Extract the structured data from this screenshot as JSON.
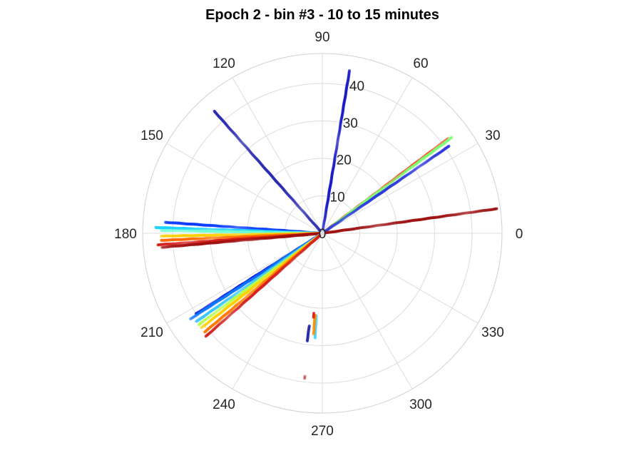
{
  "chart_data": {
    "type": "scatter",
    "subtype": "polar",
    "title": "Epoch 2 - bin #3 - 10 to 15 minutes",
    "theta_unit": "degrees",
    "theta_ticks": [
      0,
      30,
      60,
      90,
      120,
      150,
      180,
      210,
      240,
      270,
      300,
      330
    ],
    "theta_tick_labels": [
      "0",
      "30",
      "60",
      "90",
      "120",
      "150",
      "180",
      "210",
      "240",
      "270",
      "300",
      "330"
    ],
    "r_ticks": [
      0,
      10,
      20,
      30,
      40
    ],
    "r_tick_labels": [
      "0",
      "10",
      "20",
      "30",
      "40"
    ],
    "r_tick_label_angle": 80,
    "rlim": [
      0,
      48
    ],
    "grid": true,
    "legend": "none",
    "colormap": "jet",
    "series": [
      {
        "theta": 80.5,
        "r_range": [
          1,
          44
        ],
        "color": "#1a1ac8"
      },
      {
        "theta": 131.5,
        "r_range": [
          1,
          43.5
        ],
        "color": "#2a2ab0"
      },
      {
        "theta": 37,
        "r_range": [
          1,
          42
        ],
        "color": "#ff4a1e"
      },
      {
        "theta": 36.5,
        "r_range": [
          1,
          43
        ],
        "color": "#7cff7a"
      },
      {
        "theta": 34.5,
        "r_range": [
          1,
          41
        ],
        "color": "#2e3adc"
      },
      {
        "theta": 8,
        "r_range": [
          1,
          47
        ],
        "color": "#9e1212"
      },
      {
        "theta": 176,
        "r_range": [
          1,
          42
        ],
        "color": "#0a3aff"
      },
      {
        "theta": 178,
        "r_range": [
          1,
          44.5
        ],
        "color": "#1ad2ff"
      },
      {
        "theta": 179,
        "r_range": [
          1,
          43
        ],
        "color": "#70ffd0"
      },
      {
        "theta": 181,
        "r_range": [
          1,
          43
        ],
        "color": "#ffd000"
      },
      {
        "theta": 182.5,
        "r_range": [
          1,
          43
        ],
        "color": "#ff6a00"
      },
      {
        "theta": 184,
        "r_range": [
          1,
          44
        ],
        "color": "#d61a1a"
      },
      {
        "theta": 185,
        "r_range": [
          1,
          43
        ],
        "color": "#a01010"
      },
      {
        "theta": 213,
        "r_range": [
          1,
          33
        ],
        "color": "#2a2aa0"
      },
      {
        "theta": 212.5,
        "r_range": [
          1,
          40
        ],
        "color": "#0a0ae0"
      },
      {
        "theta": 213,
        "r_range": [
          1,
          42
        ],
        "color": "#0a7aff"
      },
      {
        "theta": 215,
        "r_range": [
          1,
          41
        ],
        "color": "#3ac8ff"
      },
      {
        "theta": 216.5,
        "r_range": [
          1,
          41
        ],
        "color": "#b4ff4a"
      },
      {
        "theta": 218,
        "r_range": [
          1,
          41
        ],
        "color": "#ffd000"
      },
      {
        "theta": 220,
        "r_range": [
          1,
          41
        ],
        "color": "#ff7a00"
      },
      {
        "theta": 221.5,
        "r_range": [
          1,
          41.5
        ],
        "color": "#d42020"
      },
      {
        "theta": 262,
        "r_range": [
          25,
          29
        ],
        "color": "#2a2aa8"
      },
      {
        "theta": 266,
        "r_range": [
          22,
          28
        ],
        "color": "#3ad2ff"
      },
      {
        "theta": 265,
        "r_range": [
          22,
          27
        ],
        "color": "#ff8a00"
      },
      {
        "theta": 264,
        "r_range": [
          21.5,
          22.5
        ],
        "color": "#d41a1a"
      },
      {
        "theta": 263,
        "r_range": [
          38.5,
          39
        ],
        "color": "#b01010"
      }
    ]
  }
}
